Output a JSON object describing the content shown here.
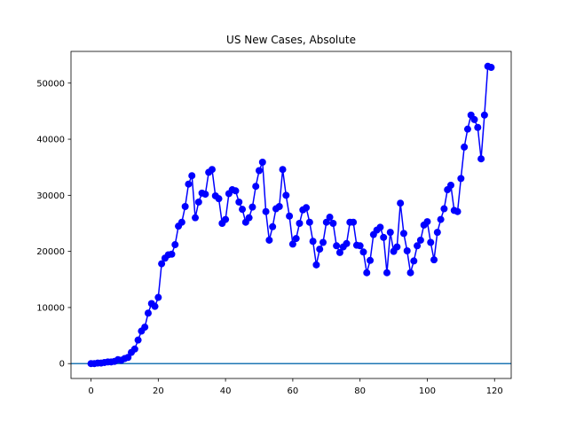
{
  "chart_data": {
    "type": "line",
    "title": "US New Cases, Absolute",
    "x": [
      0,
      1,
      2,
      3,
      4,
      5,
      6,
      7,
      8,
      9,
      10,
      11,
      12,
      13,
      14,
      15,
      16,
      17,
      18,
      19,
      20,
      21,
      22,
      23,
      24,
      25,
      26,
      27,
      28,
      29,
      30,
      31,
      32,
      33,
      34,
      35,
      36,
      37,
      38,
      39,
      40,
      41,
      42,
      43,
      44,
      45,
      46,
      47,
      48,
      49,
      50,
      51,
      52,
      53,
      54,
      55,
      56,
      57,
      58,
      59,
      60,
      61,
      62,
      63,
      64,
      65,
      66,
      67,
      68,
      69,
      70,
      71,
      72,
      73,
      74,
      75,
      76,
      77,
      78,
      79,
      80,
      81,
      82,
      83,
      84,
      85,
      86,
      87,
      88,
      89,
      90,
      91,
      92,
      93,
      94,
      95,
      96,
      97,
      98,
      99,
      100,
      101,
      102,
      103,
      104,
      105,
      106,
      107,
      108,
      109,
      110,
      111,
      112,
      113,
      114,
      115,
      116,
      117,
      118,
      119
    ],
    "series": [
      {
        "name": "US",
        "color": "#0000ff",
        "marker": true,
        "values": [
          0,
          0,
          100,
          100,
          200,
          300,
          300,
          400,
          700,
          600,
          900,
          1100,
          2000,
          2600,
          4200,
          5800,
          6500,
          9000,
          10700,
          10200,
          11800,
          17800,
          18800,
          19400,
          19500,
          21200,
          24500,
          25200,
          28000,
          32000,
          33500,
          26000,
          28800,
          30400,
          30200,
          34100,
          34600,
          29900,
          29400,
          25000,
          25700,
          30300,
          31000,
          30800,
          28800,
          27500,
          25200,
          26000,
          27900,
          31600,
          34400,
          35900,
          27100,
          22000,
          24400,
          27600,
          28000,
          34600,
          30000,
          26300,
          21300,
          22300,
          25000,
          27400,
          27800,
          25200,
          21800,
          17600,
          20400,
          21600,
          25200,
          26100,
          25000,
          21000,
          19800,
          20800,
          21400,
          25200,
          25200,
          21100,
          21000,
          19900,
          16200,
          18400,
          23000,
          23800,
          24300,
          22500,
          16200,
          23400,
          20000,
          20800,
          28600,
          23200,
          20100,
          16200,
          18300,
          21000,
          22000,
          24700,
          25300,
          21600,
          18500,
          23400,
          25700,
          27600,
          31000,
          31800,
          27300,
          27100,
          33000,
          38600,
          41800,
          44300,
          43500,
          42100,
          36500,
          44300,
          53000,
          52800
        ]
      }
    ],
    "hlines": [
      {
        "y": 0,
        "color": "#1f77b4"
      }
    ],
    "xlim": [
      -5.95,
      124.95
    ],
    "ylim": [
      -2650,
      55650
    ],
    "xticks": [
      0,
      20,
      40,
      60,
      80,
      100,
      120
    ],
    "yticks": [
      0,
      10000,
      20000,
      30000,
      40000,
      50000
    ]
  }
}
